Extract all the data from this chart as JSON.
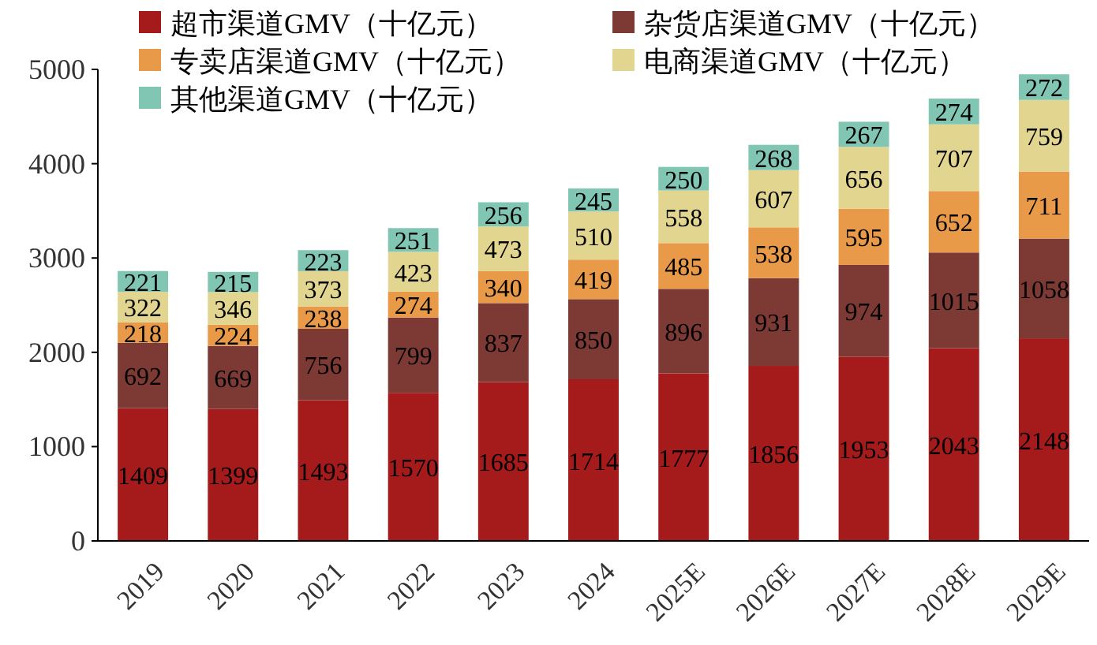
{
  "chart_data": {
    "type": "bar",
    "stacked": true,
    "categories": [
      "2019",
      "2020",
      "2021",
      "2022",
      "2023",
      "2024",
      "2025E",
      "2026E",
      "2027E",
      "2028E",
      "2029E"
    ],
    "series": [
      {
        "name": "超市渠道GMV（十亿元）",
        "color": "#a51b1b",
        "values": [
          1409,
          1399,
          1493,
          1570,
          1685,
          1714,
          1777,
          1856,
          1953,
          2043,
          2148
        ]
      },
      {
        "name": "杂货店渠道GMV（十亿元）",
        "color": "#7d3a35",
        "values": [
          692,
          669,
          756,
          799,
          837,
          850,
          896,
          931,
          974,
          1015,
          1058
        ]
      },
      {
        "name": "专卖店渠道GMV（十亿元）",
        "color": "#e89a48",
        "values": [
          218,
          224,
          238,
          274,
          340,
          419,
          485,
          538,
          595,
          652,
          711
        ]
      },
      {
        "name": "电商渠道GMV（十亿元）",
        "color": "#e2d590",
        "values": [
          322,
          346,
          373,
          423,
          473,
          510,
          558,
          607,
          656,
          707,
          759
        ]
      },
      {
        "name": "其他渠道GMV（十亿元）",
        "color": "#80c6b2",
        "values": [
          221,
          215,
          223,
          251,
          256,
          245,
          250,
          268,
          267,
          274,
          272
        ]
      }
    ],
    "ylim": [
      0,
      5000
    ],
    "yticks": [
      0,
      1000,
      2000,
      3000,
      4000,
      5000
    ],
    "data_labels": true,
    "legend": "top",
    "grid": false
  }
}
